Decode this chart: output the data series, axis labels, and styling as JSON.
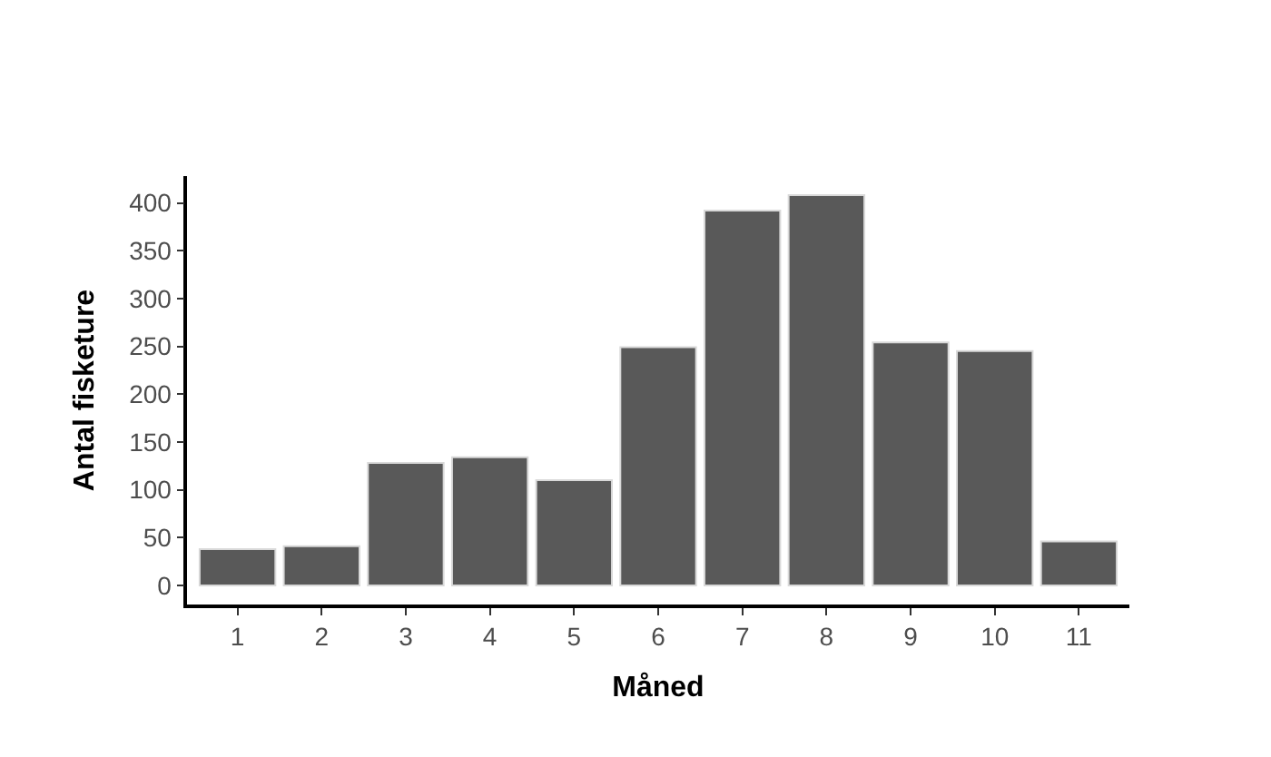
{
  "chart_data": {
    "type": "bar",
    "xlabel": "Måned",
    "ylabel": "Antal fisketure",
    "categories": [
      "1",
      "2",
      "3",
      "4",
      "5",
      "6",
      "7",
      "8",
      "9",
      "10",
      "11"
    ],
    "values": [
      38,
      41,
      128,
      134,
      110,
      249,
      392,
      408,
      254,
      245,
      46
    ],
    "color": "#595959",
    "ylim": [
      -20,
      428
    ],
    "yticks": [
      0,
      50,
      100,
      150,
      200,
      250,
      300,
      350,
      400
    ]
  }
}
